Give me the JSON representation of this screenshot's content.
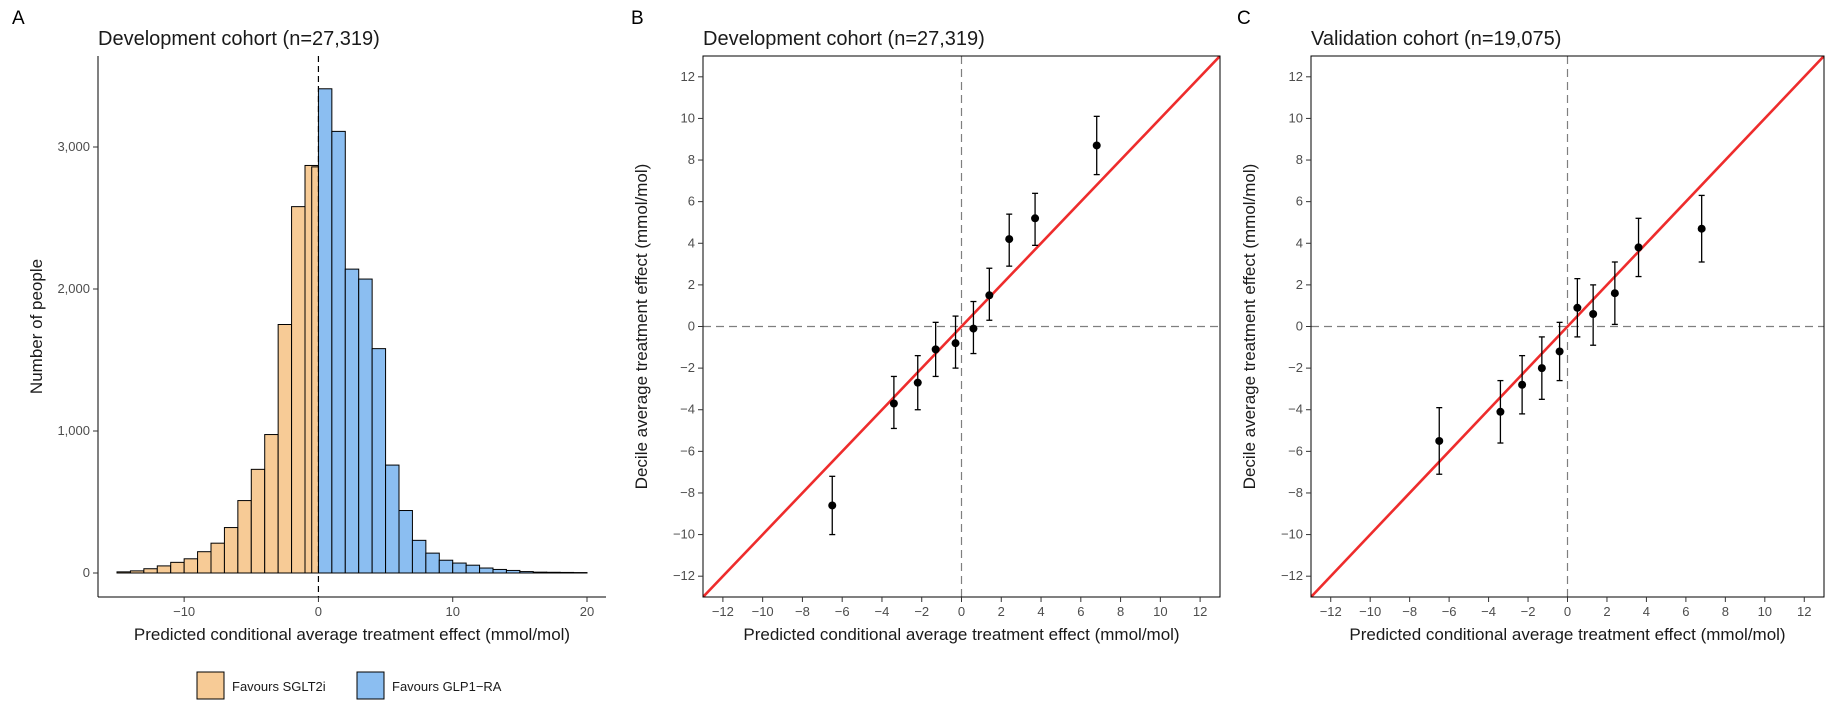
{
  "chart_data": [
    {
      "panel": "A",
      "type": "bar",
      "title": "Development cohort (n=27,319)",
      "xlabel": "Predicted conditional average treatment effect (mmol/mol)",
      "ylabel": "Number of people",
      "xlim": [
        -15,
        20
      ],
      "ylim": [
        0,
        3500
      ],
      "xticks": [
        -10,
        0,
        10,
        20
      ],
      "yticks": [
        0,
        1000,
        2000,
        3000
      ],
      "ytick_labels": [
        "0",
        "1,000",
        "2,000",
        "3,000"
      ],
      "vline": 0,
      "bin_width": 1,
      "bins": [
        {
          "x0": -15,
          "count": 8
        },
        {
          "x0": -14,
          "count": 15
        },
        {
          "x0": -13,
          "count": 30
        },
        {
          "x0": -12,
          "count": 50
        },
        {
          "x0": -11,
          "count": 75
        },
        {
          "x0": -10,
          "count": 100
        },
        {
          "x0": -9,
          "count": 150
        },
        {
          "x0": -8,
          "count": 210
        },
        {
          "x0": -7,
          "count": 320
        },
        {
          "x0": -6,
          "count": 510
        },
        {
          "x0": -5,
          "count": 730
        },
        {
          "x0": -4,
          "count": 975
        },
        {
          "x0": -3,
          "count": 1750
        },
        {
          "x0": -2,
          "count": 2580
        },
        {
          "x0": -1,
          "count": 2870
        },
        {
          "x0": 0,
          "count": 2860
        },
        {
          "x0": 0,
          "count": 3410
        },
        {
          "x0": 1,
          "count": 3110
        },
        {
          "x0": 2,
          "count": 2140
        },
        {
          "x0": 3,
          "count": 2070
        },
        {
          "x0": 4,
          "count": 1580
        },
        {
          "x0": 5,
          "count": 760
        },
        {
          "x0": 6,
          "count": 440
        },
        {
          "x0": 7,
          "count": 230
        },
        {
          "x0": 8,
          "count": 140
        },
        {
          "x0": 9,
          "count": 90
        },
        {
          "x0": 10,
          "count": 70
        },
        {
          "x0": 11,
          "count": 55
        },
        {
          "x0": 12,
          "count": 35
        },
        {
          "x0": 13,
          "count": 25
        },
        {
          "x0": 14,
          "count": 18
        },
        {
          "x0": 15,
          "count": 10
        },
        {
          "x0": 16,
          "count": 6
        },
        {
          "x0": 17,
          "count": 5
        },
        {
          "x0": 18,
          "count": 4
        },
        {
          "x0": 19,
          "count": 3
        }
      ],
      "legend": [
        {
          "label": "Favours SGLT2i",
          "color": "#F7CB96"
        },
        {
          "label": "Favours GLP1−RA",
          "color": "#8BBEF1"
        }
      ],
      "legend_position": "bottom"
    },
    {
      "panel": "B",
      "type": "scatter",
      "title": "Development cohort (n=27,319)",
      "xlabel": "Predicted conditional average treatment effect (mmol/mol)",
      "ylabel": "Decile average treatment effect (mmol/mol)",
      "xlim": [
        -13,
        13
      ],
      "ylim": [
        -13,
        13
      ],
      "ticks": [
        -12,
        -10,
        -8,
        -6,
        -4,
        -2,
        0,
        2,
        4,
        6,
        8,
        10,
        12
      ],
      "reference_line": "y = x",
      "reference_color": "#EE2C2C",
      "points": [
        {
          "x": -6.5,
          "y": -8.6,
          "lo": -10.0,
          "hi": -7.2
        },
        {
          "x": -3.4,
          "y": -3.7,
          "lo": -4.9,
          "hi": -2.4
        },
        {
          "x": -2.2,
          "y": -2.7,
          "lo": -4.0,
          "hi": -1.4
        },
        {
          "x": -1.3,
          "y": -1.1,
          "lo": -2.4,
          "hi": 0.2
        },
        {
          "x": -0.3,
          "y": -0.8,
          "lo": -2.0,
          "hi": 0.5
        },
        {
          "x": 0.6,
          "y": -0.1,
          "lo": -1.3,
          "hi": 1.2
        },
        {
          "x": 1.4,
          "y": 1.5,
          "lo": 0.3,
          "hi": 2.8
        },
        {
          "x": 2.4,
          "y": 4.2,
          "lo": 2.9,
          "hi": 5.4
        },
        {
          "x": 3.7,
          "y": 5.2,
          "lo": 3.9,
          "hi": 6.4
        },
        {
          "x": 6.8,
          "y": 8.7,
          "lo": 7.3,
          "hi": 10.1
        }
      ]
    },
    {
      "panel": "C",
      "type": "scatter",
      "title": "Validation cohort (n=19,075)",
      "xlabel": "Predicted conditional average treatment effect (mmol/mol)",
      "ylabel": "Decile average treatment effect (mmol/mol)",
      "xlim": [
        -13,
        13
      ],
      "ylim": [
        -13,
        13
      ],
      "ticks": [
        -12,
        -10,
        -8,
        -6,
        -4,
        -2,
        0,
        2,
        4,
        6,
        8,
        10,
        12
      ],
      "reference_line": "y = x",
      "reference_color": "#EE2C2C",
      "points": [
        {
          "x": -6.5,
          "y": -5.5,
          "lo": -7.1,
          "hi": -3.9
        },
        {
          "x": -3.4,
          "y": -4.1,
          "lo": -5.6,
          "hi": -2.6
        },
        {
          "x": -2.3,
          "y": -2.8,
          "lo": -4.2,
          "hi": -1.4
        },
        {
          "x": -1.3,
          "y": -2.0,
          "lo": -3.5,
          "hi": -0.5
        },
        {
          "x": -0.4,
          "y": -1.2,
          "lo": -2.6,
          "hi": 0.2
        },
        {
          "x": 0.5,
          "y": 0.9,
          "lo": -0.5,
          "hi": 2.3
        },
        {
          "x": 1.3,
          "y": 0.6,
          "lo": -0.9,
          "hi": 2.0
        },
        {
          "x": 2.4,
          "y": 1.6,
          "lo": 0.1,
          "hi": 3.1
        },
        {
          "x": 3.6,
          "y": 3.8,
          "lo": 2.4,
          "hi": 5.2
        },
        {
          "x": 6.8,
          "y": 4.7,
          "lo": 3.1,
          "hi": 6.3
        }
      ]
    }
  ]
}
